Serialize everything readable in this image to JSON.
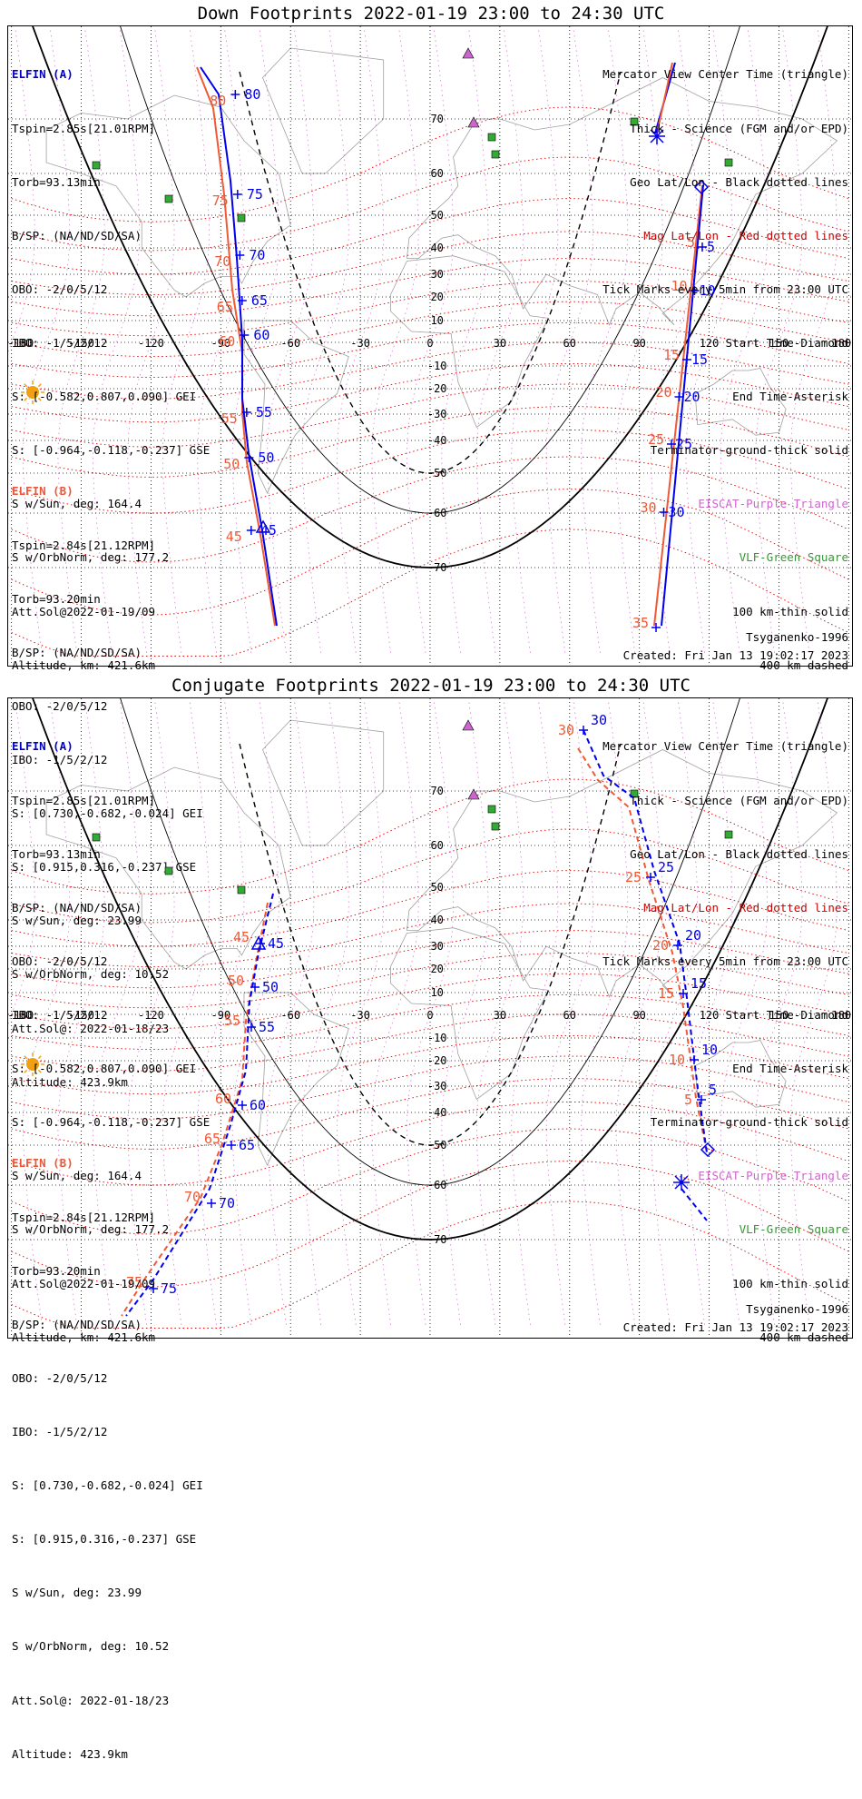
{
  "panels": [
    {
      "title": "Down Footprints 2022-01-19 23:00 to 24:30 UTC",
      "elfin_a": {
        "header": "ELFIN (A)",
        "lines": [
          "Tspin=2.85s[21.01RPM]",
          "Torb=93.13min",
          "B/SP: (NA/ND/SD/SA)",
          "OBO: -2/0/5/12",
          "IBO: -1/5/2/12",
          "S: [-0.582,0.807,0.090] GEI",
          "S: [-0.964,-0.118,-0.237] GSE",
          "S w/Sun, deg: 164.4",
          "S w/OrbNorm, deg: 177.2",
          "Att.Sol@2022-01-19/09",
          "Altitude, km: 421.6km"
        ]
      },
      "elfin_b": {
        "header": "ELFIN (B)",
        "lines": [
          "Tspin=2.84s[21.12RPM]",
          "Torb=93.20min",
          "B/SP: (NA/ND/SD/SA)",
          "OBO: -2/0/5/12",
          "IBO: -1/5/2/12",
          "S: [0.730,-0.682,-0.024] GEI",
          "S: [0.915,0.316,-0.237] GSE",
          "S w/Sun, deg: 23.99",
          "S w/OrbNorm, deg: 10.52",
          "Att.Sol@: 2022-01-18/23",
          "Altitude: 423.9km"
        ]
      },
      "legend": [
        "Mercator View Center Time (triangle)",
        "Thick - Science (FGM and/or EPD)",
        "Geo Lat/Lon - Black dotted lines",
        "Mag Lat/Lon - Red dotted lines",
        "Tick Marks every 5min from 23:00 UTC",
        "Start Time-Diamond",
        "End Time-Asterisk",
        "Terminator-ground-thick solid",
        "EISCAT-Purple Triangle",
        "VLF-Green Square",
        "100 km-thin solid",
        "400 km-dashed"
      ],
      "model": "Tsyganenko-1996",
      "created": "Created: Fri Jan 13 19:02:17 2023",
      "lon_labels": [
        "-180",
        "-150",
        "-120",
        "-90",
        "-60",
        "-30",
        "0",
        "30",
        "60",
        "90",
        "120",
        "150",
        "180"
      ],
      "lat_labels": [
        "70",
        "60",
        "50",
        "40",
        "30",
        "20",
        "10",
        "-10",
        "-20",
        "-30",
        "-40",
        "-50",
        "-60",
        "-70"
      ],
      "track_a_left": [
        "80",
        "75",
        "70",
        "65",
        "60",
        "55",
        "50",
        "45"
      ],
      "track_b_left": [
        "80",
        "75",
        "70",
        "65",
        "60",
        "55",
        "50",
        "45"
      ],
      "track_a_right": [
        "5",
        "10",
        "15",
        "20",
        "25",
        "30"
      ],
      "track_b_right": [
        "5",
        "10",
        "15",
        "20",
        "25",
        "30",
        "35"
      ]
    },
    {
      "title": "Conjugate Footprints 2022-01-19 23:00 to 24:30 UTC",
      "elfin_a": {
        "header": "ELFIN (A)",
        "lines": [
          "Tspin=2.85s[21.01RPM]",
          "Torb=93.13min",
          "B/SP: (NA/ND/SD/SA)",
          "OBO: -2/0/5/12",
          "IBO: -1/5/2/12",
          "S: [-0.582,0.807,0.090] GEI",
          "S: [-0.964,-0.118,-0.237] GSE",
          "S w/Sun, deg: 164.4",
          "S w/OrbNorm, deg: 177.2",
          "Att.Sol@2022-01-19/09",
          "Altitude, km: 421.6km"
        ]
      },
      "elfin_b": {
        "header": "ELFIN (B)",
        "lines": [
          "Tspin=2.84s[21.12RPM]",
          "Torb=93.20min",
          "B/SP: (NA/ND/SD/SA)",
          "OBO: -2/0/5/12",
          "IBO: -1/5/2/12",
          "S: [0.730,-0.682,-0.024] GEI",
          "S: [0.915,0.316,-0.237] GSE",
          "S w/Sun, deg: 23.99",
          "S w/OrbNorm, deg: 10.52",
          "Att.Sol@: 2022-01-18/23",
          "Altitude: 423.9km"
        ]
      },
      "legend": [
        "Mercator View Center Time (triangle)",
        "Thick - Science (FGM and/or EPD)",
        "Geo Lat/Lon - Black dotted lines",
        "Mag Lat/Lon - Red dotted lines",
        "Tick Marks every 5min from 23:00 UTC",
        "Start Time-Diamond",
        "End Time-Asterisk",
        "Terminator-ground-thick solid",
        "EISCAT-Purple Triangle",
        "VLF-Green Square",
        "100 km-thin solid",
        "400 km-dashed"
      ],
      "model": "Tsyganenko-1996",
      "created": "Created: Fri Jan 13 19:02:17 2023",
      "lon_labels": [
        "-180",
        "-150",
        "-120",
        "-90",
        "-60",
        "-30",
        "0",
        "30",
        "60",
        "90",
        "120",
        "150",
        "180"
      ],
      "lat_labels": [
        "70",
        "60",
        "50",
        "40",
        "30",
        "20",
        "10",
        "-10",
        "-20",
        "-30",
        "-40",
        "-50",
        "-60",
        "-70"
      ],
      "track_a_left": [
        "45",
        "50",
        "55",
        "60",
        "65",
        "70",
        "75"
      ],
      "track_b_left": [
        "45",
        "50",
        "55",
        "60",
        "65",
        "70",
        "75"
      ],
      "track_a_right": [
        "30",
        "25",
        "20",
        "15",
        "10",
        "5"
      ],
      "track_b_right": [
        "30",
        "25",
        "20",
        "15",
        "10",
        "5"
      ]
    }
  ],
  "colors": {
    "elfin_a": "#0000ee",
    "elfin_b": "#ef5a36",
    "mag_grid": "#dd0000",
    "geo_grid": "#000000",
    "eiscat": "#cc66cc",
    "vlf": "#33aa33",
    "sun": "#f0a010",
    "coast": "#a0a0a0"
  }
}
